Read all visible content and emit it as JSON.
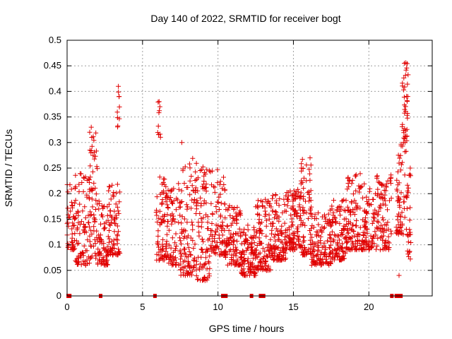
{
  "chart_data": {
    "type": "scatter",
    "title": "Day 140 of 2022, SRMTID for receiver bogt",
    "xlabel": "GPS time / hours",
    "ylabel": "SRMTID / TECUs",
    "xlim": [
      0,
      24.2
    ],
    "ylim": [
      0,
      0.5
    ],
    "xticks": [
      0,
      5,
      10,
      15,
      20
    ],
    "yticks": [
      0,
      0.05,
      0.1,
      0.15,
      0.2,
      0.25,
      0.3,
      0.35,
      0.4,
      0.45,
      0.5
    ],
    "xtick_labels": [
      "0",
      "5",
      "10",
      "15",
      "20"
    ],
    "ytick_labels": [
      "0",
      "0.05",
      "0.1",
      "0.15",
      "0.2",
      "0.25",
      "0.3",
      "0.35",
      "0.4",
      "0.45",
      "0.5"
    ],
    "grid": true,
    "marker": "plus",
    "series_color": "#e00000",
    "zero_points_x": [
      0.05,
      0.15,
      2.2,
      5.8,
      10.3,
      10.5,
      12.2,
      12.8,
      13.0,
      21.5,
      21.8,
      22.0,
      22.1
    ],
    "segments": [
      {
        "x0": 0.0,
        "x1": 0.5,
        "ymin": 0.09,
        "ymax": 0.22,
        "n": 45
      },
      {
        "x0": 0.5,
        "x1": 1.5,
        "ymin": 0.06,
        "ymax": 0.24,
        "n": 90
      },
      {
        "x0": 1.5,
        "x1": 2.0,
        "ymin": 0.07,
        "ymax": 0.32,
        "n": 55
      },
      {
        "x0": 2.0,
        "x1": 2.7,
        "ymin": 0.06,
        "ymax": 0.19,
        "n": 70
      },
      {
        "x0": 2.7,
        "x1": 3.5,
        "ymin": 0.08,
        "ymax": 0.22,
        "n": 80
      },
      {
        "x0": 3.3,
        "x1": 3.5,
        "ymin": 0.33,
        "ymax": 0.4,
        "n": 8
      },
      {
        "x0": 5.9,
        "x1": 6.5,
        "ymin": 0.07,
        "ymax": 0.24,
        "n": 60
      },
      {
        "x0": 6.0,
        "x1": 6.2,
        "ymin": 0.31,
        "ymax": 0.38,
        "n": 8
      },
      {
        "x0": 6.5,
        "x1": 7.5,
        "ymin": 0.06,
        "ymax": 0.22,
        "n": 90
      },
      {
        "x0": 7.5,
        "x1": 8.5,
        "ymin": 0.04,
        "ymax": 0.27,
        "n": 100
      },
      {
        "x0": 8.5,
        "x1": 9.5,
        "ymin": 0.03,
        "ymax": 0.26,
        "n": 100
      },
      {
        "x0": 9.5,
        "x1": 10.5,
        "ymin": 0.08,
        "ymax": 0.25,
        "n": 90
      },
      {
        "x0": 10.5,
        "x1": 11.5,
        "ymin": 0.06,
        "ymax": 0.18,
        "n": 100
      },
      {
        "x0": 11.5,
        "x1": 12.5,
        "ymin": 0.04,
        "ymax": 0.14,
        "n": 110
      },
      {
        "x0": 12.5,
        "x1": 13.5,
        "ymin": 0.05,
        "ymax": 0.19,
        "n": 110
      },
      {
        "x0": 13.5,
        "x1": 14.5,
        "ymin": 0.07,
        "ymax": 0.2,
        "n": 110
      },
      {
        "x0": 14.5,
        "x1": 15.5,
        "ymin": 0.09,
        "ymax": 0.21,
        "n": 110
      },
      {
        "x0": 15.5,
        "x1": 16.2,
        "ymin": 0.08,
        "ymax": 0.27,
        "n": 80
      },
      {
        "x0": 16.2,
        "x1": 17.5,
        "ymin": 0.06,
        "ymax": 0.17,
        "n": 120
      },
      {
        "x0": 17.5,
        "x1": 18.5,
        "ymin": 0.07,
        "ymax": 0.19,
        "n": 100
      },
      {
        "x0": 18.5,
        "x1": 19.5,
        "ymin": 0.09,
        "ymax": 0.25,
        "n": 100
      },
      {
        "x0": 19.5,
        "x1": 20.5,
        "ymin": 0.09,
        "ymax": 0.22,
        "n": 90
      },
      {
        "x0": 20.5,
        "x1": 21.5,
        "ymin": 0.09,
        "ymax": 0.24,
        "n": 90
      },
      {
        "x0": 21.8,
        "x1": 22.5,
        "ymin": 0.12,
        "ymax": 0.3,
        "n": 60
      },
      {
        "x0": 22.2,
        "x1": 22.6,
        "ymin": 0.3,
        "ymax": 0.46,
        "n": 40
      },
      {
        "x0": 22.5,
        "x1": 22.8,
        "ymin": 0.07,
        "ymax": 0.26,
        "n": 30
      }
    ],
    "notable_points": [
      {
        "x": 1.6,
        "y": 0.33
      },
      {
        "x": 1.5,
        "y": 0.32
      },
      {
        "x": 3.4,
        "y": 0.41
      },
      {
        "x": 3.45,
        "y": 0.39
      },
      {
        "x": 6.1,
        "y": 0.38
      },
      {
        "x": 6.15,
        "y": 0.37
      },
      {
        "x": 7.6,
        "y": 0.3
      },
      {
        "x": 22.45,
        "y": 0.456
      },
      {
        "x": 22.35,
        "y": 0.455
      },
      {
        "x": 22.0,
        "y": 0.04
      },
      {
        "x": 16.1,
        "y": 0.27
      }
    ]
  }
}
